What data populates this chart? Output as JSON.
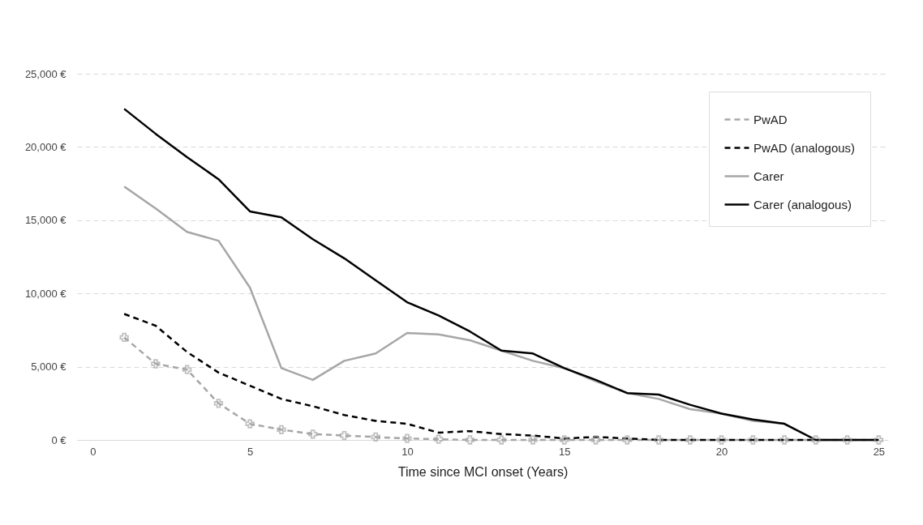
{
  "chart_data": {
    "type": "line",
    "xlabel": "Time since MCI onset (Years)",
    "x": [
      1,
      2,
      3,
      4,
      5,
      6,
      7,
      8,
      9,
      10,
      11,
      12,
      13,
      14,
      15,
      16,
      17,
      18,
      19,
      20,
      21,
      22,
      23,
      24,
      25
    ],
    "series": [
      {
        "name": "PwAD",
        "color": "#a6a6a6",
        "line_style": "dashed",
        "marker": "cross",
        "values": [
          7000,
          5200,
          4800,
          2500,
          1100,
          700,
          400,
          300,
          200,
          100,
          50,
          0,
          0,
          0,
          0,
          0,
          0,
          0,
          0,
          0,
          0,
          0,
          0,
          0,
          0
        ]
      },
      {
        "name": "PwAD (analogous)",
        "color": "#000000",
        "line_style": "dashed",
        "marker": "none",
        "values": [
          8600,
          7800,
          6000,
          4600,
          3700,
          2800,
          2300,
          1700,
          1300,
          1100,
          500,
          600,
          400,
          300,
          100,
          200,
          100,
          0,
          0,
          0,
          0,
          0,
          0,
          null,
          null
        ]
      },
      {
        "name": "Carer",
        "color": "#a6a6a6",
        "line_style": "solid",
        "marker": "none",
        "values": [
          17300,
          15800,
          14200,
          13600,
          10400,
          4900,
          4100,
          5400,
          5900,
          7300,
          7200,
          6800,
          6100,
          5400,
          4900,
          4000,
          3200,
          2800,
          2100,
          1800,
          1300,
          1100,
          0,
          0,
          0
        ]
      },
      {
        "name": "Carer (analogous)",
        "color": "#000000",
        "line_style": "solid",
        "marker": "none",
        "values": [
          22600,
          20900,
          19300,
          17800,
          15600,
          15200,
          13700,
          12400,
          10900,
          9400,
          8500,
          7400,
          6100,
          5900,
          4900,
          4100,
          3200,
          3100,
          2400,
          1800,
          1400,
          1100,
          0,
          0,
          0
        ]
      }
    ],
    "xlim": [
      -0.5,
      25.3
    ],
    "xticks": [
      0,
      5,
      10,
      15,
      20,
      25
    ],
    "ylim": [
      0,
      25000
    ],
    "yticks": [
      {
        "value": 0,
        "label": "0 €"
      },
      {
        "value": 5000,
        "label": "5,000 €"
      },
      {
        "value": 10000,
        "label": "10,000 €"
      },
      {
        "value": 15000,
        "label": "15,000 €"
      },
      {
        "value": 20000,
        "label": "20,000 €"
      },
      {
        "value": 25000,
        "label": "25,000 €"
      }
    ],
    "grid": "y",
    "legend": "top right"
  }
}
